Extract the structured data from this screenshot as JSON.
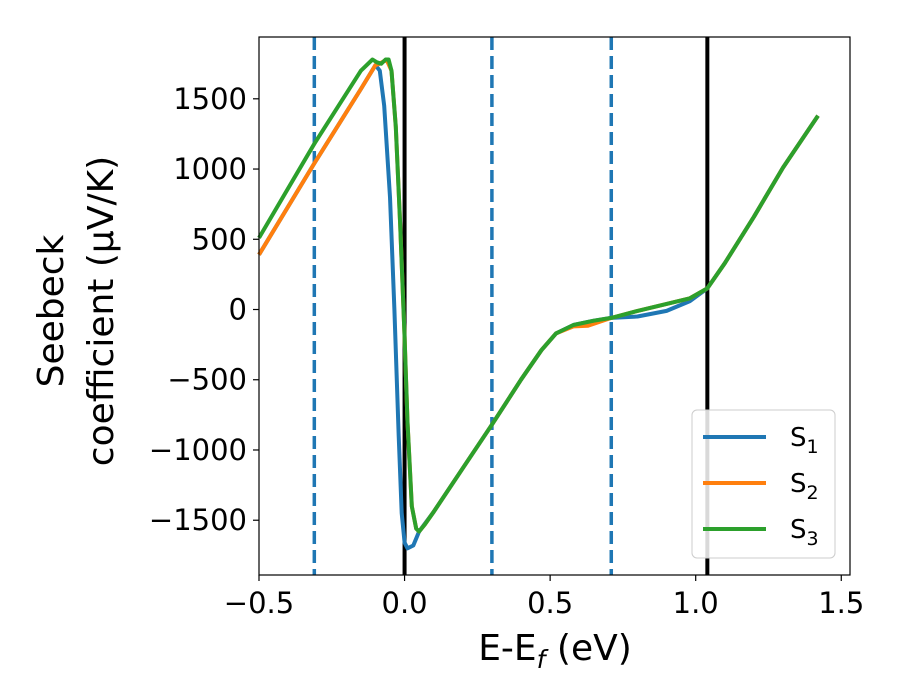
{
  "chart_data": {
    "type": "line",
    "title": "",
    "xlabel": {
      "main": "E-E",
      "sub": "f",
      "tail": " (eV)"
    },
    "ylabel": {
      "line1": "Seebeck",
      "line2": "coefficient  (μV/K)"
    },
    "xlim": [
      -0.5,
      1.53
    ],
    "ylim": [
      -1890,
      1940
    ],
    "xticks": [
      {
        "value": -0.5,
        "label": "−0.5"
      },
      {
        "value": 0.0,
        "label": "0.0"
      },
      {
        "value": 0.5,
        "label": "0.5"
      },
      {
        "value": 1.0,
        "label": "1.0"
      },
      {
        "value": 1.5,
        "label": "1.5"
      }
    ],
    "yticks": [
      {
        "value": 1500,
        "label": "1500"
      },
      {
        "value": 1000,
        "label": "1000"
      },
      {
        "value": 500,
        "label": "500"
      },
      {
        "value": 0,
        "label": "0"
      },
      {
        "value": -500,
        "label": "−500"
      },
      {
        "value": -1000,
        "label": "−1000"
      },
      {
        "value": -1500,
        "label": "−1500"
      }
    ],
    "grid": false,
    "legend_position": "lower-right",
    "vlines": [
      {
        "x": -0.31,
        "style": "dashed",
        "color": "#1f77b4"
      },
      {
        "x": 0.0,
        "style": "solid",
        "color": "#000000"
      },
      {
        "x": 0.3,
        "style": "dashed",
        "color": "#1f77b4"
      },
      {
        "x": 0.71,
        "style": "dashed",
        "color": "#1f77b4"
      },
      {
        "x": 1.04,
        "style": "solid",
        "color": "#000000"
      }
    ],
    "series": [
      {
        "name": "S",
        "sub": "1",
        "color": "#1f77b4",
        "points": [
          [
            -0.5,
            390
          ],
          [
            -0.31,
            1040
          ],
          [
            -0.15,
            1570
          ],
          [
            -0.1,
            1740
          ],
          [
            -0.085,
            1700
          ],
          [
            -0.07,
            1450
          ],
          [
            -0.05,
            800
          ],
          [
            -0.035,
            0
          ],
          [
            -0.02,
            -900
          ],
          [
            -0.01,
            -1450
          ],
          [
            0.0,
            -1660
          ],
          [
            0.01,
            -1700
          ],
          [
            0.03,
            -1680
          ],
          [
            0.05,
            -1580
          ],
          [
            0.1,
            -1440
          ],
          [
            0.2,
            -1130
          ],
          [
            0.3,
            -820
          ],
          [
            0.4,
            -500
          ],
          [
            0.47,
            -290
          ],
          [
            0.52,
            -170
          ],
          [
            0.58,
            -110
          ],
          [
            0.65,
            -80
          ],
          [
            0.71,
            -60
          ],
          [
            0.8,
            -50
          ],
          [
            0.9,
            -10
          ],
          [
            0.98,
            60
          ],
          [
            1.04,
            150
          ],
          [
            1.1,
            330
          ],
          [
            1.2,
            660
          ],
          [
            1.3,
            1010
          ],
          [
            1.42,
            1380
          ]
        ]
      },
      {
        "name": "S",
        "sub": "2",
        "color": "#ff7f0e",
        "points": [
          [
            -0.5,
            390
          ],
          [
            -0.31,
            1040
          ],
          [
            -0.15,
            1570
          ],
          [
            -0.1,
            1740
          ],
          [
            -0.085,
            1750
          ],
          [
            -0.07,
            1770
          ],
          [
            -0.06,
            1770
          ],
          [
            -0.045,
            1700
          ],
          [
            -0.03,
            1300
          ],
          [
            -0.015,
            600
          ],
          [
            0.0,
            -200
          ],
          [
            0.01,
            -800
          ],
          [
            0.025,
            -1400
          ],
          [
            0.04,
            -1560
          ],
          [
            0.05,
            -1580
          ],
          [
            0.07,
            -1530
          ],
          [
            0.1,
            -1440
          ],
          [
            0.2,
            -1130
          ],
          [
            0.3,
            -820
          ],
          [
            0.4,
            -500
          ],
          [
            0.47,
            -290
          ],
          [
            0.52,
            -170
          ],
          [
            0.58,
            -120
          ],
          [
            0.63,
            -115
          ],
          [
            0.71,
            -60
          ],
          [
            0.8,
            -10
          ],
          [
            0.9,
            40
          ],
          [
            0.98,
            80
          ],
          [
            1.04,
            150
          ],
          [
            1.1,
            330
          ],
          [
            1.2,
            660
          ],
          [
            1.3,
            1010
          ],
          [
            1.42,
            1380
          ]
        ]
      },
      {
        "name": "S",
        "sub": "3",
        "color": "#2ca02c",
        "points": [
          [
            -0.5,
            510
          ],
          [
            -0.31,
            1180
          ],
          [
            -0.15,
            1700
          ],
          [
            -0.11,
            1780
          ],
          [
            -0.095,
            1760
          ],
          [
            -0.08,
            1750
          ],
          [
            -0.065,
            1780
          ],
          [
            -0.055,
            1780
          ],
          [
            -0.045,
            1700
          ],
          [
            -0.03,
            1300
          ],
          [
            -0.015,
            600
          ],
          [
            0.0,
            -200
          ],
          [
            0.01,
            -800
          ],
          [
            0.025,
            -1400
          ],
          [
            0.04,
            -1560
          ],
          [
            0.05,
            -1580
          ],
          [
            0.07,
            -1530
          ],
          [
            0.1,
            -1440
          ],
          [
            0.2,
            -1130
          ],
          [
            0.3,
            -820
          ],
          [
            0.4,
            -500
          ],
          [
            0.47,
            -290
          ],
          [
            0.52,
            -170
          ],
          [
            0.58,
            -110
          ],
          [
            0.65,
            -80
          ],
          [
            0.71,
            -60
          ],
          [
            0.8,
            -10
          ],
          [
            0.9,
            40
          ],
          [
            0.98,
            80
          ],
          [
            1.04,
            150
          ],
          [
            1.1,
            330
          ],
          [
            1.2,
            660
          ],
          [
            1.3,
            1010
          ],
          [
            1.42,
            1380
          ]
        ]
      }
    ]
  }
}
